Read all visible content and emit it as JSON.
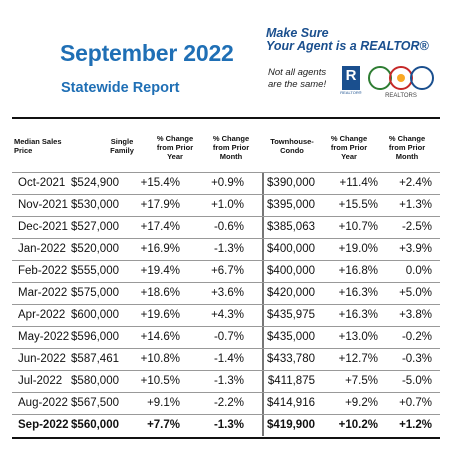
{
  "header": {
    "title": "September 2022",
    "subtitle": "Statewide Report",
    "promo_line1": "Make Sure",
    "promo_line2": "Your Agent is a REALTOR®",
    "note_line1": "Not all agents",
    "note_line2": "are the same!",
    "realtor_logo_letter": "R",
    "realtor_logo_sub": "REALTOR®",
    "car_logo_text": "REALTORS"
  },
  "table": {
    "headers": {
      "median": [
        "Median Sales",
        "Price"
      ],
      "single_family": [
        "Single",
        "Family"
      ],
      "sf_year": [
        "% Change",
        "from Prior",
        "Year"
      ],
      "sf_month": [
        "% Change",
        "from Prior",
        "Month"
      ],
      "townhouse": [
        "Townhouse-",
        "Condo"
      ],
      "th_year": [
        "% Change",
        "from Prior",
        "Year"
      ],
      "th_month": [
        "% Change",
        "from Prior",
        "Month"
      ]
    },
    "rows": [
      {
        "month": "Oct-2021",
        "sf": "$524,900",
        "sf_y": "+15.4%",
        "sf_m": "+0.9%",
        "th": "$390,000",
        "th_y": "+11.4%",
        "th_m": "+2.4%"
      },
      {
        "month": "Nov-2021",
        "sf": "$530,000",
        "sf_y": "+17.9%",
        "sf_m": "+1.0%",
        "th": "$395,000",
        "th_y": "+15.5%",
        "th_m": "+1.3%"
      },
      {
        "month": "Dec-2021",
        "sf": "$527,000",
        "sf_y": "+17.4%",
        "sf_m": "-0.6%",
        "th": "$385,063",
        "th_y": "+10.7%",
        "th_m": "-2.5%"
      },
      {
        "month": "Jan-2022",
        "sf": "$520,000",
        "sf_y": "+16.9%",
        "sf_m": "-1.3%",
        "th": "$400,000",
        "th_y": "+19.0%",
        "th_m": "+3.9%"
      },
      {
        "month": "Feb-2022",
        "sf": "$555,000",
        "sf_y": "+19.4%",
        "sf_m": "+6.7%",
        "th": "$400,000",
        "th_y": "+16.8%",
        "th_m": "0.0%"
      },
      {
        "month": "Mar-2022",
        "sf": "$575,000",
        "sf_y": "+18.6%",
        "sf_m": "+3.6%",
        "th": "$420,000",
        "th_y": "+16.3%",
        "th_m": "+5.0%"
      },
      {
        "month": "Apr-2022",
        "sf": "$600,000",
        "sf_y": "+19.6%",
        "sf_m": "+4.3%",
        "th": "$435,975",
        "th_y": "+16.3%",
        "th_m": "+3.8%"
      },
      {
        "month": "May-2022",
        "sf": "$596,000",
        "sf_y": "+14.6%",
        "sf_m": "-0.7%",
        "th": "$435,000",
        "th_y": "+13.0%",
        "th_m": "-0.2%"
      },
      {
        "month": "Jun-2022",
        "sf": "$587,461",
        "sf_y": "+10.8%",
        "sf_m": "-1.4%",
        "th": "$433,780",
        "th_y": "+12.7%",
        "th_m": "-0.3%"
      },
      {
        "month": "Jul-2022",
        "sf": "$580,000",
        "sf_y": "+10.5%",
        "sf_m": "-1.3%",
        "th": "$411,875",
        "th_y": "+7.5%",
        "th_m": "-5.0%"
      },
      {
        "month": "Aug-2022",
        "sf": "$567,500",
        "sf_y": "+9.1%",
        "sf_m": "-2.2%",
        "th": "$414,916",
        "th_y": "+9.2%",
        "th_m": "+0.7%"
      },
      {
        "month": "Sep-2022",
        "sf": "$560,000",
        "sf_y": "+7.7%",
        "sf_m": "-1.3%",
        "th": "$419,900",
        "th_y": "+10.2%",
        "th_m": "+1.2%"
      }
    ]
  },
  "colors": {
    "title_blue": "#1f6fb5",
    "realtor_blue": "#1a4f8e"
  }
}
